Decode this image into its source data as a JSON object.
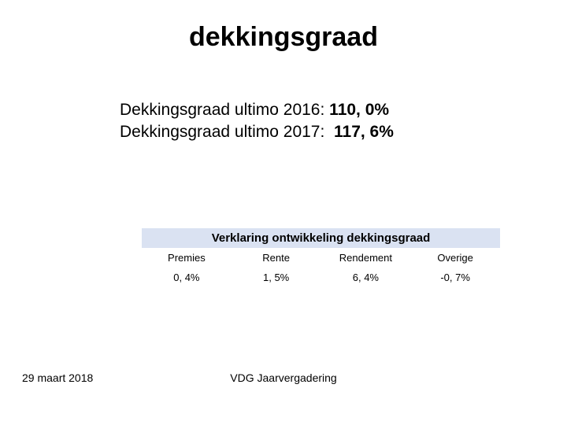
{
  "title": "dekkingsgraad",
  "lines": [
    {
      "label": "Dekkingsgraad ultimo 2016:",
      "value": "110, 0%"
    },
    {
      "label": "Dekkingsgraad ultimo 2017:",
      "value": "117, 6%"
    }
  ],
  "table": {
    "header": "Verklaring ontwikkeling dekkingsgraad",
    "columns": [
      "Premies",
      "Rente",
      "Rendement",
      "Overige"
    ],
    "values": [
      "0, 4%",
      "1, 5%",
      "6, 4%",
      "-0, 7%"
    ],
    "header_bg": "#dae2f2"
  },
  "footer": {
    "date": "29 maart 2018",
    "center": "VDG Jaarvergadering"
  }
}
